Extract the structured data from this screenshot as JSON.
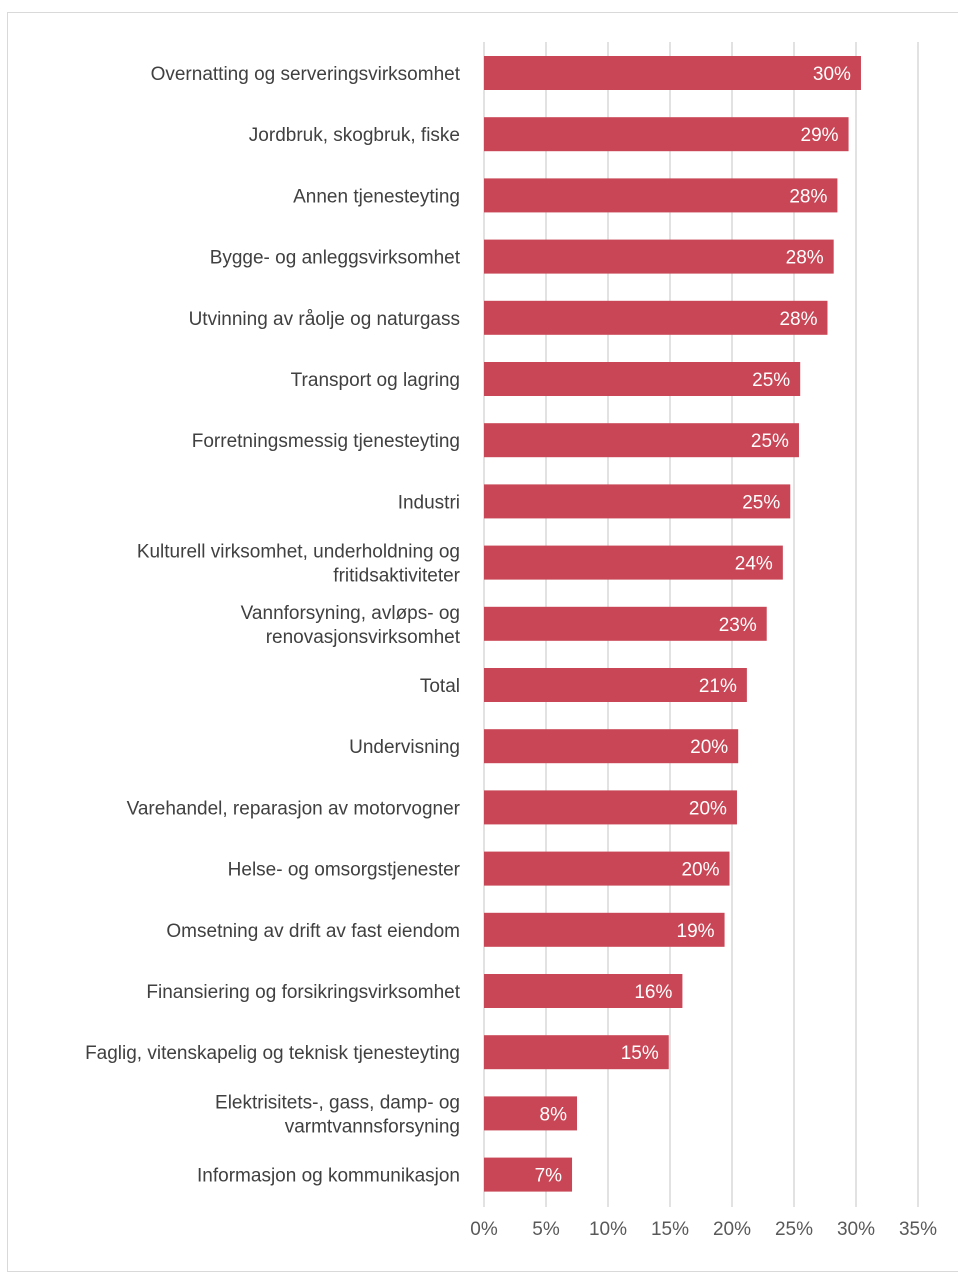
{
  "chart_data": {
    "type": "bar",
    "orientation": "horizontal",
    "title": "",
    "xlabel": "",
    "ylabel": "",
    "categories": [
      [
        "Overnatting og serveringsvirksomhet"
      ],
      [
        "Jordbruk, skogbruk, fiske"
      ],
      [
        "Annen tjenesteyting"
      ],
      [
        "Bygge- og anleggsvirksomhet"
      ],
      [
        "Utvinning av råolje og naturgass"
      ],
      [
        "Transport og lagring"
      ],
      [
        "Forretningsmessig tjenesteyting"
      ],
      [
        "Industri"
      ],
      [
        "Kulturell virksomhet, underholdning og",
        "fritidsaktiviteter"
      ],
      [
        "Vannforsyning, avløps- og",
        "renovasjonsvirksomhet"
      ],
      [
        "Total"
      ],
      [
        "Undervisning"
      ],
      [
        "Varehandel, reparasjon av motorvogner"
      ],
      [
        "Helse- og omsorgstjenester"
      ],
      [
        "Omsetning av drift av fast eiendom"
      ],
      [
        "Finansiering og forsikringsvirksomhet"
      ],
      [
        "Faglig, vitenskapelig og teknisk tjenesteyting"
      ],
      [
        "Elektrisitets-, gass, damp- og",
        "varmtvannsforsyning"
      ],
      [
        "Informasjon og kommunikasjon"
      ]
    ],
    "values": [
      0.304,
      0.294,
      0.285,
      0.282,
      0.277,
      0.255,
      0.254,
      0.247,
      0.241,
      0.228,
      0.212,
      0.205,
      0.204,
      0.198,
      0.194,
      0.16,
      0.149,
      0.075,
      0.071
    ],
    "value_labels": [
      "30%",
      "29%",
      "28%",
      "28%",
      "28%",
      "25%",
      "25%",
      "25%",
      "24%",
      "23%",
      "21%",
      "20%",
      "20%",
      "20%",
      "19%",
      "16%",
      "15%",
      "8%",
      "7%"
    ],
    "xlim": [
      0,
      0.35
    ],
    "ticks": [
      0,
      0.05,
      0.1,
      0.15,
      0.2,
      0.25,
      0.3,
      0.35
    ],
    "tick_labels": [
      "0%",
      "5%",
      "10%",
      "15%",
      "20%",
      "25%",
      "30%",
      "35%"
    ],
    "grid": true,
    "legend": "none",
    "bar_color": "#c84655",
    "grid_color": "#d9d9d9"
  }
}
